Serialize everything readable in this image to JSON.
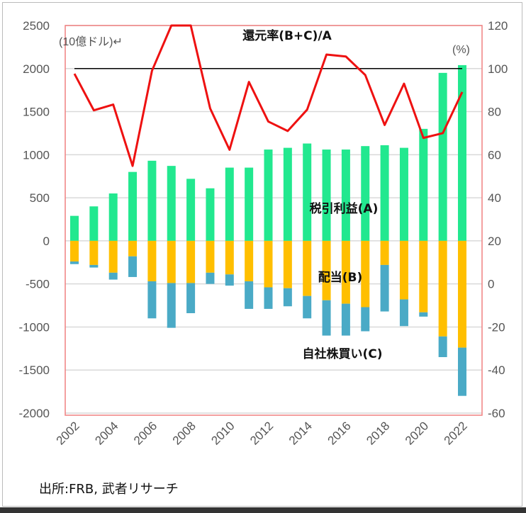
{
  "chart_data": {
    "type": "bar",
    "title": "還元率(B+C)/A",
    "left_axis_unit": "(10億ドル)↵",
    "right_axis_unit": "(%)",
    "ylim_left": [
      -2000,
      2500
    ],
    "ylim_right": [
      -60,
      120
    ],
    "yticks_left": [
      "2500",
      "2000",
      "1500",
      "1000",
      "500",
      "0",
      "-500",
      "-1000",
      "-1500",
      "-2000"
    ],
    "yticks_right": [
      "120",
      "100",
      "80",
      "60",
      "40",
      "20",
      "0",
      "-20",
      "-40",
      "-60"
    ],
    "categories": [
      "2002",
      "2003",
      "2004",
      "2005",
      "2006",
      "2007",
      "2008",
      "2009",
      "2010",
      "2011",
      "2012",
      "2013",
      "2014",
      "2015",
      "2016",
      "2017",
      "2018",
      "2019",
      "2020",
      "2021",
      "2022"
    ],
    "xtick_labels": [
      "2002",
      "2004",
      "2006",
      "2008",
      "2010",
      "2012",
      "2014",
      "2016",
      "2018",
      "2020",
      "2022"
    ],
    "reference_line_pct": 100,
    "series": [
      {
        "name": "税引利益(A)",
        "type": "bar",
        "axis": "left",
        "color": "#22e88f",
        "values": [
          290,
          400,
          550,
          800,
          930,
          870,
          720,
          610,
          850,
          850,
          1060,
          1080,
          1130,
          1060,
          1060,
          1100,
          1110,
          1080,
          1300,
          1950,
          2040
        ]
      },
      {
        "name": "配当(B)",
        "type": "bar",
        "axis": "left",
        "color": "#ffbf00",
        "values": [
          -240,
          -280,
          -370,
          -180,
          -470,
          -490,
          -490,
          -370,
          -390,
          -470,
          -540,
          -550,
          -640,
          -690,
          -730,
          -770,
          -280,
          -680,
          -830,
          -1110,
          -1240
        ]
      },
      {
        "name": "自社株買い(C)",
        "type": "bar",
        "axis": "left",
        "color": "#4aaac6",
        "stacked_below": "配当(B)",
        "values": [
          -30,
          -30,
          -80,
          -240,
          -430,
          -520,
          -350,
          -130,
          -130,
          -320,
          -250,
          -210,
          -260,
          -410,
          -370,
          -280,
          -540,
          -310,
          -50,
          -240,
          -560
        ]
      },
      {
        "name": "還元率(B+C)/A",
        "type": "line",
        "axis": "right",
        "color": "#ee1111",
        "values": [
          97.6,
          80.6,
          83.3,
          54.8,
          99,
          120,
          120,
          81.5,
          62.3,
          93.8,
          75.4,
          71,
          80.9,
          106.5,
          105.6,
          97,
          73.8,
          93,
          67.8,
          70,
          89.1
        ]
      }
    ],
    "grid": true,
    "source": "出所:FRB, 武者リサーチ"
  }
}
